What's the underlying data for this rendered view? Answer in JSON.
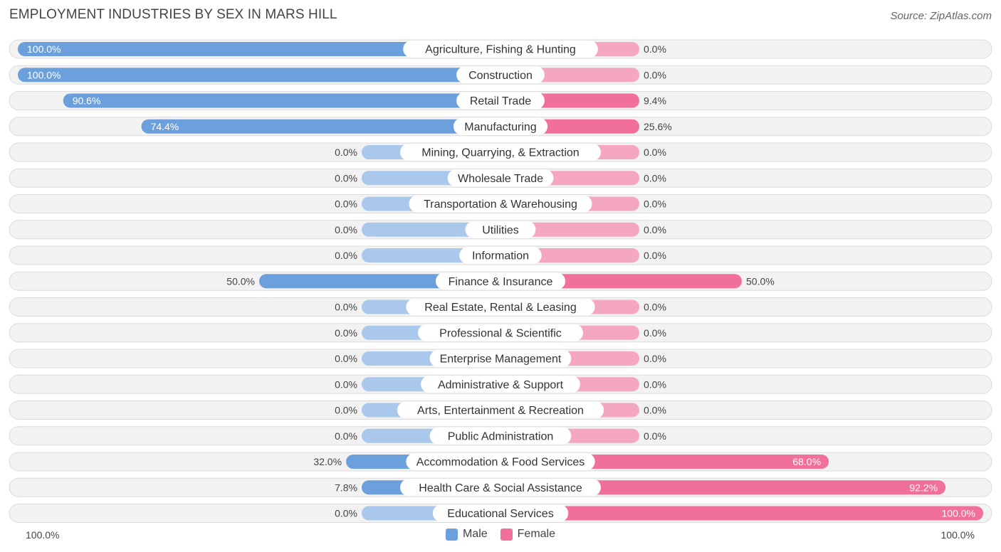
{
  "title": "EMPLOYMENT INDUSTRIES BY SEX IN MARS HILL",
  "source": "Source: ZipAtlas.com",
  "axis": {
    "left_label": "100.0%",
    "right_label": "100.0%"
  },
  "legend": {
    "male_label": "Male",
    "female_label": "Female"
  },
  "colors": {
    "male": "#6ba0dc",
    "male_light": "#a9c8ec",
    "female": "#f0709a",
    "female_light": "#f6a7c0",
    "row_bg": "#f2f2f2",
    "row_border": "#dcdcdc"
  },
  "chart_data": {
    "type": "bar",
    "orientation": "diverging-horizontal",
    "xlim": [
      -100,
      100
    ],
    "categories": [
      "Agriculture, Fishing & Hunting",
      "Construction",
      "Retail Trade",
      "Manufacturing",
      "Mining, Quarrying, & Extraction",
      "Wholesale Trade",
      "Transportation & Warehousing",
      "Utilities",
      "Information",
      "Finance & Insurance",
      "Real Estate, Rental & Leasing",
      "Professional & Scientific",
      "Enterprise Management",
      "Administrative & Support",
      "Arts, Entertainment & Recreation",
      "Public Administration",
      "Accommodation & Food Services",
      "Health Care & Social Assistance",
      "Educational Services"
    ],
    "series": [
      {
        "name": "Male",
        "values": [
          100.0,
          100.0,
          90.6,
          74.4,
          0.0,
          0.0,
          0.0,
          0.0,
          0.0,
          50.0,
          0.0,
          0.0,
          0.0,
          0.0,
          0.0,
          0.0,
          32.0,
          7.8,
          0.0
        ],
        "labels": [
          "100.0%",
          "100.0%",
          "90.6%",
          "74.4%",
          "0.0%",
          "0.0%",
          "0.0%",
          "0.0%",
          "0.0%",
          "50.0%",
          "0.0%",
          "0.0%",
          "0.0%",
          "0.0%",
          "0.0%",
          "0.0%",
          "32.0%",
          "7.8%",
          "0.0%"
        ]
      },
      {
        "name": "Female",
        "values": [
          0.0,
          0.0,
          9.4,
          25.6,
          0.0,
          0.0,
          0.0,
          0.0,
          0.0,
          50.0,
          0.0,
          0.0,
          0.0,
          0.0,
          0.0,
          0.0,
          68.0,
          92.2,
          100.0
        ],
        "labels": [
          "0.0%",
          "0.0%",
          "9.4%",
          "25.6%",
          "0.0%",
          "0.0%",
          "0.0%",
          "0.0%",
          "0.0%",
          "50.0%",
          "0.0%",
          "0.0%",
          "0.0%",
          "0.0%",
          "0.0%",
          "0.0%",
          "68.0%",
          "92.2%",
          "100.0%"
        ]
      }
    ],
    "legend_position": "bottom-center"
  }
}
